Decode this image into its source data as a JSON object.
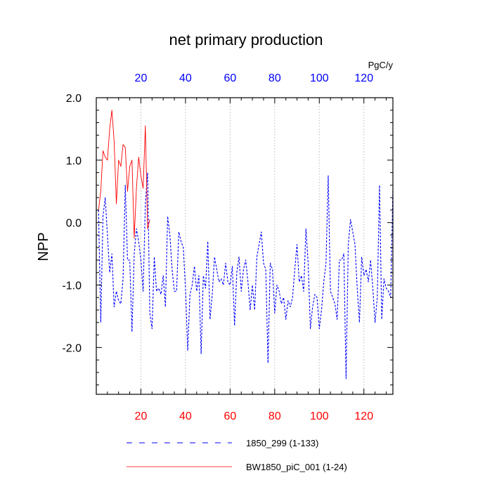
{
  "chart_data": {
    "type": "line",
    "title": "net primary production",
    "ylabel": "NPP",
    "units": "PgC/y",
    "xlim": [
      0,
      133
    ],
    "ylim": [
      -2.75,
      2.0
    ],
    "x_major_ticks": [
      20,
      40,
      60,
      80,
      100,
      120
    ],
    "x_tick_labels": [
      "20",
      "40",
      "60",
      "80",
      "100",
      "120"
    ],
    "y_major_ticks": [
      2.0,
      1.0,
      0.0,
      -1.0,
      -2.0
    ],
    "y_tick_labels": [
      "2.0",
      "1.0",
      "0.0",
      "-1.0",
      "-2.0"
    ],
    "colors": {
      "bottom_tick_labels": "#ff0000",
      "top_tick_labels": "#0000ff",
      "grid": "#aaaaaa"
    },
    "grid_x": true,
    "legend_position": "bottom",
    "series": [
      {
        "name": "1850_299 (1-133)",
        "color": "#0000ff",
        "style": "dashed",
        "x": [
          1,
          2,
          3,
          4,
          5,
          6,
          7,
          8,
          9,
          10,
          11,
          12,
          13,
          14,
          15,
          16,
          17,
          18,
          19,
          20,
          21,
          22,
          23,
          24,
          25,
          26,
          27,
          28,
          29,
          30,
          31,
          32,
          33,
          34,
          35,
          36,
          37,
          38,
          39,
          40,
          41,
          42,
          43,
          44,
          45,
          46,
          47,
          48,
          49,
          50,
          51,
          52,
          53,
          54,
          55,
          56,
          57,
          58,
          59,
          60,
          61,
          62,
          63,
          64,
          65,
          66,
          67,
          68,
          69,
          70,
          71,
          72,
          73,
          74,
          75,
          76,
          77,
          78,
          79,
          80,
          81,
          82,
          83,
          84,
          85,
          86,
          87,
          88,
          89,
          90,
          91,
          92,
          93,
          94,
          95,
          96,
          97,
          98,
          99,
          100,
          101,
          102,
          103,
          104,
          105,
          106,
          107,
          108,
          109,
          110,
          111,
          112,
          113,
          114,
          115,
          116,
          117,
          118,
          119,
          120,
          121,
          122,
          123,
          124,
          125,
          126,
          127,
          128,
          129,
          130,
          131,
          132,
          133
        ],
        "y": [
          0.2,
          -1.6,
          0.1,
          0.4,
          -0.2,
          -0.8,
          -0.5,
          -1.35,
          -1.1,
          -1.25,
          -1.3,
          -0.9,
          0.6,
          -0.6,
          -0.6,
          -1.75,
          -0.5,
          -0.1,
          -0.3,
          -0.6,
          -1.1,
          0.3,
          0.8,
          -1.45,
          -1.7,
          -0.55,
          -1.1,
          -1.05,
          -1.15,
          -0.85,
          -1.35,
          0.1,
          -0.2,
          -0.75,
          -1.1,
          -1.1,
          -0.15,
          -0.3,
          -0.4,
          -1.05,
          -2.05,
          -1.15,
          -1.0,
          -0.7,
          -1.1,
          -0.85,
          -2.1,
          -0.85,
          -1.05,
          -0.3,
          -1.55,
          -1.15,
          -0.55,
          -0.75,
          -0.95,
          -0.9,
          -1.0,
          -0.65,
          -0.95,
          -1.0,
          -0.7,
          -1.65,
          -0.8,
          -0.55,
          -1.1,
          -0.75,
          -0.6,
          -0.95,
          -1.4,
          -1.0,
          -1.4,
          -0.55,
          -0.35,
          -0.15,
          -0.65,
          -0.75,
          -2.25,
          -0.65,
          -0.75,
          -1.45,
          -1.0,
          -1.1,
          -1.3,
          -1.2,
          -1.55,
          -1.25,
          -1.35,
          -1.2,
          -0.75,
          -0.35,
          -0.95,
          -0.85,
          -1.1,
          -0.1,
          -0.65,
          -1.7,
          -1.35,
          -1.15,
          -1.2,
          -1.7,
          -1.4,
          -0.95,
          -0.65,
          0.75,
          -1.1,
          -1.2,
          -1.3,
          -1.55,
          -0.6,
          -0.6,
          -0.5,
          -2.5,
          -0.35,
          0.05,
          -0.15,
          -0.35,
          -1.05,
          -1.6,
          -0.55,
          -0.85,
          -0.75,
          -0.95,
          -0.6,
          -1.05,
          -1.6,
          -1.2,
          0.6,
          -1.55,
          -0.9,
          -1.05,
          -1.1,
          -1.2,
          0.55
        ]
      },
      {
        "name": "BW1850_piC_001 (1-24)",
        "color": "#ff0000",
        "style": "solid",
        "x": [
          1,
          2,
          3,
          4,
          5,
          6,
          7,
          8,
          9,
          10,
          11,
          12,
          13,
          14,
          15,
          16,
          17,
          18,
          19,
          20,
          21,
          22,
          23,
          24
        ],
        "y": [
          0.2,
          0.5,
          1.15,
          1.05,
          1.0,
          1.5,
          1.8,
          1.3,
          0.3,
          1.0,
          0.9,
          1.25,
          1.2,
          0.5,
          0.9,
          1.0,
          -0.25,
          0.55,
          1.05,
          0.75,
          0.55,
          1.55,
          -0.1,
          0.05
        ]
      }
    ]
  }
}
